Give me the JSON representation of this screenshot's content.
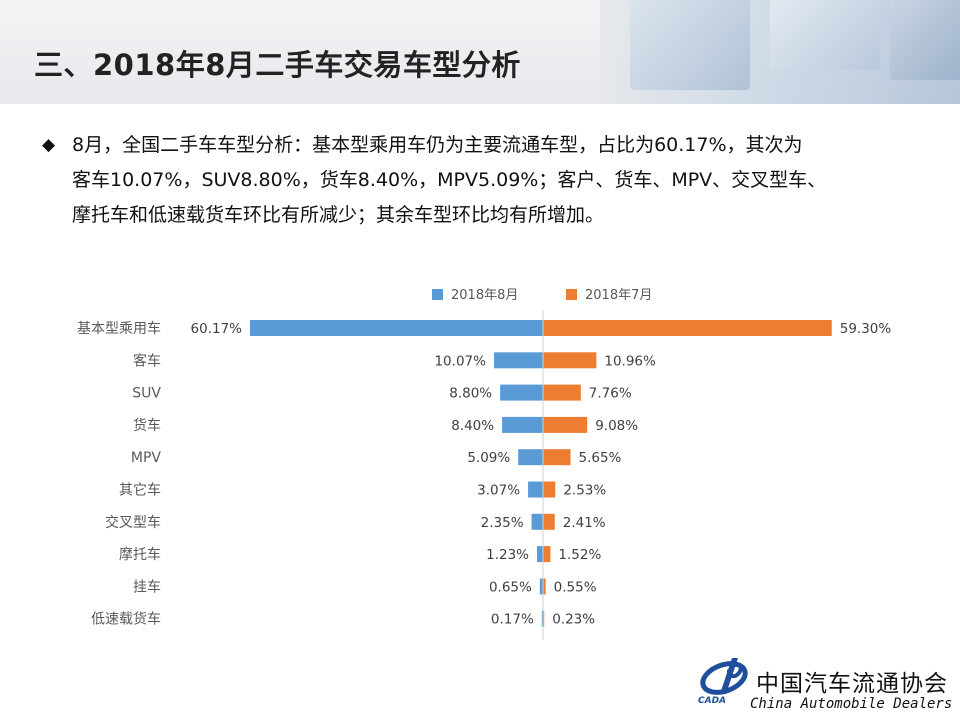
{
  "slide": {
    "title": "三、2018年8月二手车交易车型分析",
    "bullet_icon": "diamond-bullet-icon",
    "bullet_lines": [
      "8月，全国二手车车型分析：基本型乘用车仍为主要流通车型，占比为60.17%，其次为",
      "客车10.07%，SUV8.80%，货车8.40%，MPV5.09%；客户、货车、MPV、交叉型车、",
      "摩托车和低速载货车环比有所减少；其余车型环比均有所增加。"
    ]
  },
  "logo": {
    "name_cn": "中国汽车流通协会",
    "name_en": "China  Automobile Dealers",
    "mark_text": "CADA",
    "brand_color": "#1f4f9c"
  },
  "chart_data": {
    "type": "bar",
    "orientation": "horizontal-diverging",
    "title": "",
    "legend_position": "top",
    "grid": false,
    "categories": [
      "基本型乘用车",
      "客车",
      "SUV",
      "货车",
      "MPV",
      "其它车",
      "交叉型车",
      "摩托车",
      "挂车",
      "低速载货车"
    ],
    "series": [
      {
        "name": "2018年8月",
        "color": "#5b9bd5",
        "side": "left",
        "values": [
          60.17,
          10.07,
          8.8,
          8.4,
          5.09,
          3.07,
          2.35,
          1.23,
          0.65,
          0.17
        ],
        "labels": [
          "60.17%",
          "10.07%",
          "8.80%",
          "8.40%",
          "5.09%",
          "3.07%",
          "2.35%",
          "1.23%",
          "0.65%",
          "0.17%"
        ]
      },
      {
        "name": "2018年7月",
        "color": "#ed7d31",
        "side": "right",
        "values": [
          59.3,
          10.96,
          7.76,
          9.08,
          5.65,
          2.53,
          2.41,
          1.52,
          0.55,
          0.23
        ],
        "labels": [
          "59.30%",
          "10.96%",
          "7.76%",
          "9.08%",
          "5.65%",
          "2.53%",
          "2.41%",
          "1.52%",
          "0.55%",
          "0.23%"
        ]
      }
    ]
  }
}
